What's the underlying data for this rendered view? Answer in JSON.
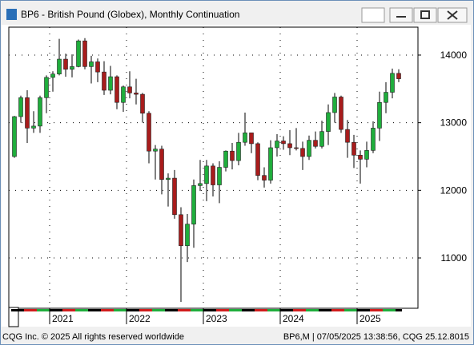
{
  "chart_data": {
    "type": "candlestick",
    "title": "BP6 - British Pound (Globex), Monthly Continuation",
    "categories": [
      null,
      null,
      null,
      null,
      null,
      null,
      "2021",
      null,
      null,
      null,
      null,
      null,
      null,
      null,
      null,
      null,
      null,
      null,
      "2022",
      null,
      null,
      null,
      null,
      null,
      null,
      null,
      null,
      null,
      null,
      null,
      "2023",
      null,
      null,
      null,
      null,
      null,
      null,
      null,
      null,
      null,
      null,
      null,
      "2024",
      null,
      null,
      null,
      null,
      null,
      null,
      null,
      null,
      null,
      null,
      null,
      "2025",
      null,
      null,
      null,
      null,
      null,
      null
    ],
    "open": [
      12500,
      13090,
      13370,
      12920,
      12950,
      13370,
      13670,
      13720,
      13940,
      13790,
      13830,
      14210,
      13830,
      13900,
      13750,
      13480,
      13680,
      13300,
      13530,
      13440,
      13420,
      13140,
      12580,
      12610,
      12160,
      12180,
      11640,
      11180,
      11500,
      12070,
      12100,
      12360,
      12080,
      12340,
      12580,
      12440,
      12710,
      12850,
      12690,
      12220,
      12150,
      12630,
      12730,
      12690,
      12630,
      12620,
      12500,
      12740,
      12650,
      12870,
      13150,
      13380,
      12900,
      12710,
      12520,
      12460,
      12590,
      12920,
      13300,
      13450,
      13730
    ],
    "high": [
      13100,
      13400,
      13480,
      13170,
      13400,
      13700,
      13760,
      14240,
      14020,
      14010,
      14230,
      14250,
      13990,
      13950,
      13910,
      13840,
      13700,
      13550,
      13760,
      13650,
      13440,
      13170,
      12670,
      12660,
      12250,
      12300,
      11750,
      11650,
      12160,
      12450,
      12450,
      12400,
      12430,
      12590,
      12700,
      12850,
      13150,
      12850,
      12710,
      12340,
      12740,
      12830,
      12800,
      12890,
      12920,
      12720,
      12810,
      12870,
      13030,
      13270,
      13440,
      13400,
      13040,
      12820,
      12590,
      12720,
      13020,
      13460,
      13600,
      13800,
      13790
    ],
    "low": [
      12480,
      13000,
      12700,
      12850,
      12850,
      13140,
      13460,
      13700,
      13680,
      13670,
      13820,
      13790,
      13580,
      13600,
      13410,
      13420,
      13200,
      13160,
      13360,
      13270,
      13000,
      12400,
      12160,
      11940,
      11760,
      11580,
      10350,
      10940,
      11150,
      11990,
      11840,
      11910,
      11810,
      12280,
      12310,
      12370,
      12660,
      12550,
      12150,
      12040,
      12100,
      12500,
      12600,
      12520,
      12590,
      12300,
      12450,
      12620,
      12620,
      12670,
      13000,
      12850,
      12480,
      12330,
      12100,
      12340,
      12550,
      12730,
      13140,
      13360,
      13600
    ],
    "close": [
      13090,
      13370,
      12920,
      12950,
      13370,
      13670,
      13720,
      13940,
      13790,
      13830,
      14210,
      13830,
      13900,
      13750,
      13480,
      13680,
      13300,
      13530,
      13440,
      13420,
      13140,
      12580,
      12610,
      12160,
      12180,
      11640,
      11180,
      11500,
      12070,
      12100,
      12360,
      12080,
      12340,
      12580,
      12440,
      12710,
      12850,
      12690,
      12220,
      12150,
      12630,
      12730,
      12690,
      12630,
      12620,
      12500,
      12740,
      12650,
      12870,
      13150,
      13380,
      12900,
      12710,
      12520,
      12460,
      12590,
      12920,
      13300,
      13450,
      13730,
      13650
    ],
    "up_color": "#1fae3c",
    "down_color": "#a81c1c",
    "ylim": [
      10256,
      14413
    ],
    "yticks": [
      11000,
      12000,
      13000,
      14000
    ],
    "grid": true
  },
  "status_bar": {
    "left": "CQG Inc. © 2025 All rights reserved worldwide",
    "right": "BP6,M | 07/05/2025 13:38:56, CQG 25.12.8015"
  }
}
